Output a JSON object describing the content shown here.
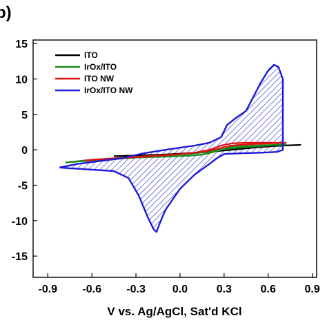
{
  "panel_label": "b)",
  "colors": {
    "ITO": "#000000",
    "IrOx/ITO": "#1a8a1a",
    "ITO NW": "#e01010",
    "IrOx/ITO NW": "#1a1ad8",
    "hatch": "#2a2ac8"
  },
  "chart_data": {
    "type": "line",
    "title": "",
    "xlabel": "V vs. Ag/AgCl, Sat'd KCl",
    "ylabel": "",
    "xlim": [
      -1.0,
      0.93
    ],
    "ylim": [
      -18.0,
      15.5
    ],
    "xticks": [
      -0.9,
      -0.6,
      -0.3,
      0.0,
      0.3,
      0.6,
      0.9
    ],
    "xtick_labels": [
      "-0.9",
      "-0.6",
      "-0.3",
      "0.0",
      "0.3",
      "0.6",
      "0.9"
    ],
    "yticks": [
      15,
      10,
      5,
      0,
      -5,
      -10,
      -15
    ],
    "ytick_labels": [
      "15",
      "10",
      "5",
      "0",
      "-5",
      "-10",
      "-15"
    ],
    "grid": false,
    "legend_position": "top-left",
    "shaded_region": "IrOx/ITO NW",
    "series": [
      {
        "name": "ITO",
        "x": [
          -0.45,
          -0.3,
          -0.15,
          0.0,
          0.15,
          0.3,
          0.45,
          0.6,
          0.7,
          0.82,
          0.7,
          0.55,
          0.4,
          0.25,
          0.1,
          -0.05,
          -0.2,
          -0.35,
          -0.45
        ],
        "y": [
          -0.9,
          -0.8,
          -0.7,
          -0.6,
          -0.4,
          -0.1,
          0.2,
          0.5,
          0.6,
          0.7,
          0.6,
          0.4,
          0.2,
          -0.1,
          -0.4,
          -0.6,
          -0.75,
          -0.85,
          -0.9
        ]
      },
      {
        "name": "IrOx/ITO",
        "x": [
          -0.78,
          -0.6,
          -0.45,
          -0.3,
          -0.15,
          0.0,
          0.15,
          0.25,
          0.35,
          0.5,
          0.65,
          0.72,
          0.6,
          0.45,
          0.3,
          0.2,
          0.05,
          -0.1,
          -0.3,
          -0.5,
          -0.65,
          -0.78
        ],
        "y": [
          -1.8,
          -1.5,
          -1.3,
          -1.1,
          -1.0,
          -0.9,
          -0.7,
          -0.2,
          0.4,
          0.6,
          0.7,
          0.75,
          0.6,
          0.4,
          0.1,
          -0.3,
          -0.6,
          -0.8,
          -1.0,
          -1.3,
          -1.5,
          -1.8
        ]
      },
      {
        "name": "ITO NW",
        "x": [
          -0.65,
          -0.5,
          -0.35,
          -0.2,
          -0.05,
          0.1,
          0.2,
          0.28,
          0.35,
          0.45,
          0.55,
          0.65,
          0.72,
          0.62,
          0.48,
          0.35,
          0.25,
          0.15,
          0.0,
          -0.15,
          -0.3,
          -0.45,
          -0.6,
          -0.65
        ],
        "y": [
          -1.5,
          -1.3,
          -1.1,
          -0.9,
          -0.7,
          -0.4,
          0.0,
          0.6,
          0.9,
          1.0,
          1.0,
          1.0,
          1.0,
          0.9,
          0.8,
          0.6,
          0.1,
          -0.3,
          -0.6,
          -0.8,
          -1.0,
          -1.2,
          -1.4,
          -1.5
        ]
      },
      {
        "name": "IrOx/ITO NW",
        "x": [
          -0.82,
          -0.7,
          -0.55,
          -0.4,
          -0.25,
          -0.1,
          0.0,
          0.1,
          0.2,
          0.28,
          0.32,
          0.38,
          0.45,
          0.5,
          0.55,
          0.6,
          0.64,
          0.67,
          0.7,
          0.7,
          0.66,
          0.55,
          0.4,
          0.3,
          0.25,
          0.2,
          0.1,
          0.0,
          -0.1,
          -0.14,
          -0.16,
          -0.18,
          -0.22,
          -0.28,
          -0.35,
          -0.45,
          -0.6,
          -0.75,
          -0.82
        ],
        "y": [
          -2.5,
          -2.0,
          -1.6,
          -1.2,
          -0.5,
          0.0,
          0.3,
          0.6,
          1.0,
          1.8,
          3.5,
          4.5,
          5.5,
          7.5,
          9.5,
          11.2,
          12.0,
          11.7,
          10.0,
          0.0,
          -0.3,
          -0.4,
          -0.5,
          -0.6,
          -1.2,
          -2.0,
          -3.5,
          -5.5,
          -8.5,
          -10.5,
          -11.6,
          -11.2,
          -9.5,
          -6.5,
          -4.0,
          -3.0,
          -2.8,
          -2.6,
          -2.5
        ]
      }
    ]
  }
}
